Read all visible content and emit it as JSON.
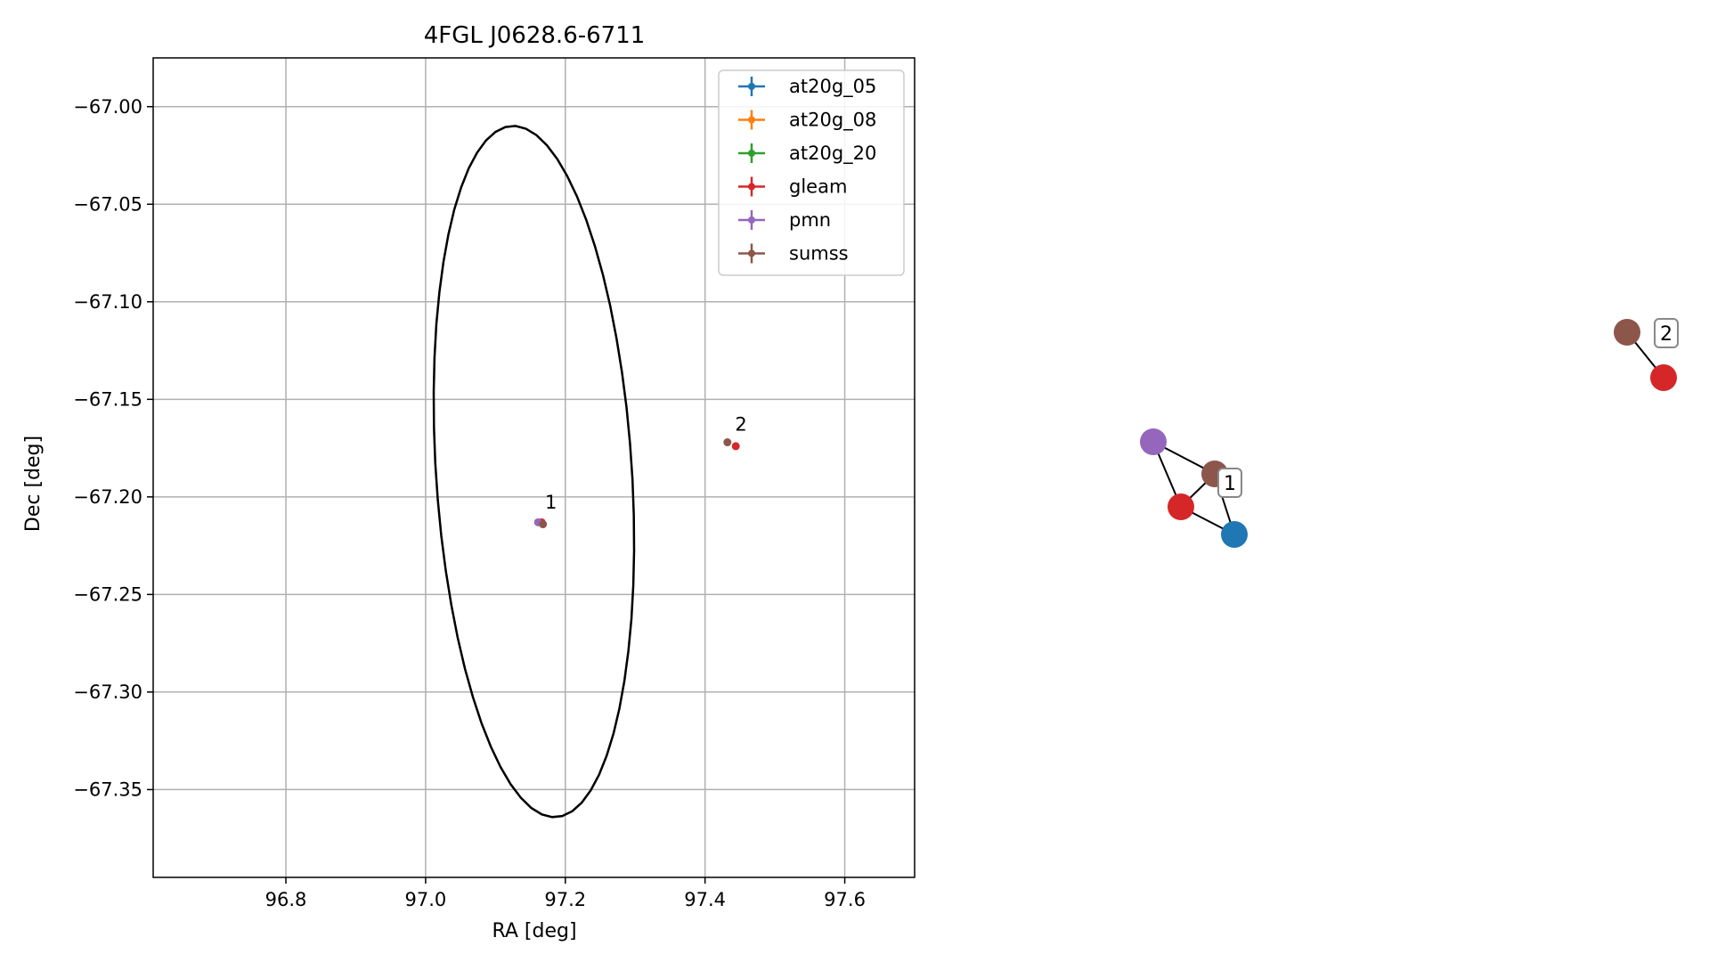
{
  "chart_data": [
    {
      "type": "scatter",
      "title": "4FGL J0628.6-6711",
      "xlabel": "RA [deg]",
      "ylabel": "Dec [deg]",
      "xlim": [
        96.61,
        97.7
      ],
      "ylim": [
        -67.395,
        -66.975
      ],
      "xticks": [
        96.8,
        97.0,
        97.2,
        97.4,
        97.6
      ],
      "xtick_labels": [
        "96.8",
        "97.0",
        "97.2",
        "97.4",
        "97.6"
      ],
      "yticks": [
        -67.0,
        -67.05,
        -67.1,
        -67.15,
        -67.2,
        -67.25,
        -67.3,
        -67.35
      ],
      "ytick_labels": [
        "−67.00",
        "−67.05",
        "−67.10",
        "−67.15",
        "−67.20",
        "−67.25",
        "−67.30",
        "−67.35"
      ],
      "grid": true,
      "legend_position": "top-right",
      "ellipse": {
        "center_ra": 97.155,
        "center_dec": -67.187,
        "semi_axis_1_deg": 0.136,
        "semi_axis_2_deg": 0.183,
        "rotation_deg": 22,
        "color": "#000000"
      },
      "series": [
        {
          "name": "at20g_05",
          "color": "#1f77b4",
          "points": []
        },
        {
          "name": "at20g_08",
          "color": "#ff7f0e",
          "points": []
        },
        {
          "name": "at20g_20",
          "color": "#2ca02c",
          "points": []
        },
        {
          "name": "gleam",
          "color": "#d62728",
          "points": [
            {
              "x": 97.166,
              "y": -67.213
            },
            {
              "x": 97.444,
              "y": -67.174
            }
          ]
        },
        {
          "name": "pmn",
          "color": "#9467bd",
          "points": [
            {
              "x": 97.161,
              "y": -67.213
            }
          ]
        },
        {
          "name": "sumss",
          "color": "#8c564b",
          "points": [
            {
              "x": 97.168,
              "y": -67.214
            },
            {
              "x": 97.432,
              "y": -67.172
            }
          ]
        }
      ],
      "annotations": [
        {
          "text": "1",
          "x": 97.171,
          "y": -67.206
        },
        {
          "text": "2",
          "x": 97.443,
          "y": -67.166
        }
      ]
    },
    {
      "type": "network",
      "nodes": [
        {
          "id": "n1",
          "color": "#9467bd"
        },
        {
          "id": "n2",
          "color": "#8c564b"
        },
        {
          "id": "n3",
          "color": "#d62728"
        },
        {
          "id": "n4",
          "color": "#1f77b4"
        },
        {
          "id": "n5",
          "color": "#8c564b"
        },
        {
          "id": "n6",
          "color": "#d62728"
        }
      ],
      "edges": [
        [
          "n1",
          "n2"
        ],
        [
          "n1",
          "n3"
        ],
        [
          "n2",
          "n3"
        ],
        [
          "n2",
          "n4"
        ],
        [
          "n3",
          "n4"
        ],
        [
          "n5",
          "n6"
        ]
      ],
      "labels": [
        {
          "text": "1"
        },
        {
          "text": "2"
        }
      ]
    }
  ]
}
